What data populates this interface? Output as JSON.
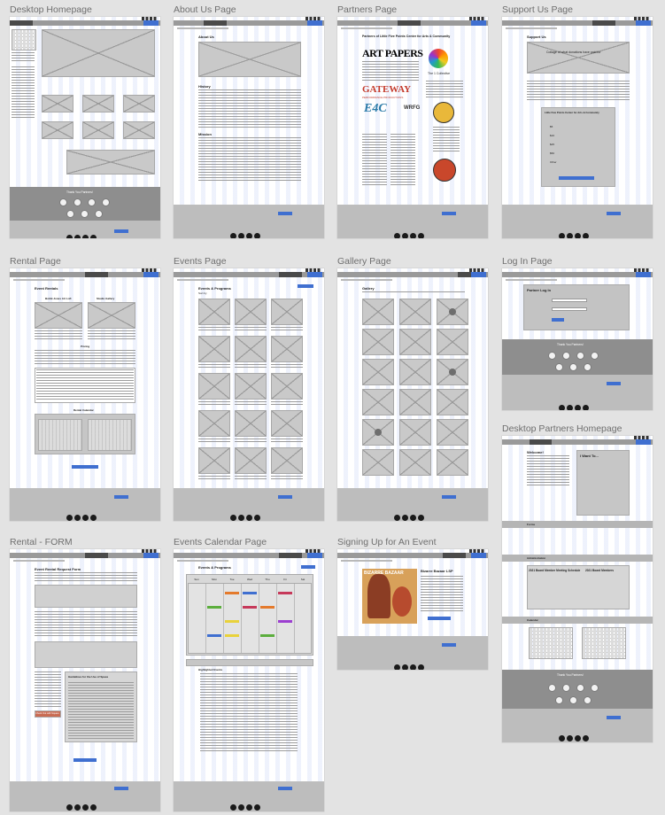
{
  "frames": [
    {
      "title": "Desktop Homepage"
    },
    {
      "title": "About Us Page"
    },
    {
      "title": "Partners Page"
    },
    {
      "title": "Support Us Page"
    },
    {
      "title": "Rental Page"
    },
    {
      "title": "Events Page"
    },
    {
      "title": "Gallery Page"
    },
    {
      "title": "Log In Page"
    },
    {
      "title": "Desktop Partners Homepage"
    },
    {
      "title": "Rental - FORM"
    },
    {
      "title": "Events Calendar Page"
    },
    {
      "title": "Signing Up for An Event"
    }
  ],
  "home": {
    "thanks": "Thank You Partners!",
    "upcoming": "Upcoming Events",
    "news": "News",
    "past": "Past Events"
  },
  "about": {
    "heading": "About Us",
    "history": "History",
    "mission": "Mission"
  },
  "partners": {
    "heading": "Partners of Little Five Points Center for Arts & Community",
    "art_papers": "ART PAPERS",
    "gateway": "GATEWAY",
    "gateway_sub": "PERFORMANCE PRODUCTIONS",
    "collective": "The 1 Collective",
    "e4c": "E4C",
    "wrfg": "WRFG"
  },
  "support": {
    "heading": "Support Us",
    "banner": "Collage of what donations have paid for",
    "card": "Little Five Points Center for Arts & Community",
    "amounts": [
      "$5",
      "$10",
      "$25",
      "$50",
      "Other"
    ],
    "donate": "Donate"
  },
  "rental": {
    "heading": "Event Rentals",
    "left_room": "Bobbi Jones Art Loft",
    "right_room": "Studio Gallery",
    "pricing": "Pricing",
    "calendar": "Rental Calendar",
    "request": "Request a Rental"
  },
  "events": {
    "heading": "Events & Programs",
    "sort": "Sort by"
  },
  "gallery": {
    "heading": "Gallery"
  },
  "login": {
    "heading": "Partner Log In",
    "button": "Log In",
    "thanks": "Thank You Partners!"
  },
  "partners_home": {
    "welcome": "Welcome!",
    "i_want": "I Want To...",
    "forms": "Forms",
    "admin": "Administration",
    "meeting": "2021 Board Member Meeting Schedule",
    "board": "2021 Board Members",
    "calendar": "Calendar",
    "thanks": "Thank You Partners!"
  },
  "rental_form": {
    "heading": "Event Rental Request Form",
    "guidelines": "Guidelines for the Use of Space",
    "check": "Check Out with Square",
    "submit": "Submit Request"
  },
  "events_cal": {
    "heading": "Events & Programs",
    "highlight": "Highlighted Events",
    "days": [
      "Sun",
      "Mon",
      "Tue",
      "Wed",
      "Thu",
      "Fri",
      "Sat"
    ]
  },
  "signup": {
    "title": "Bizarre Bazaar LSP",
    "button": "Add to Calendar",
    "poster": "BIZARRE BAZAAR"
  },
  "colors": {
    "accent": "#3f6fd0",
    "nav": "#9a9a9a",
    "band": "#8e8e8e"
  }
}
